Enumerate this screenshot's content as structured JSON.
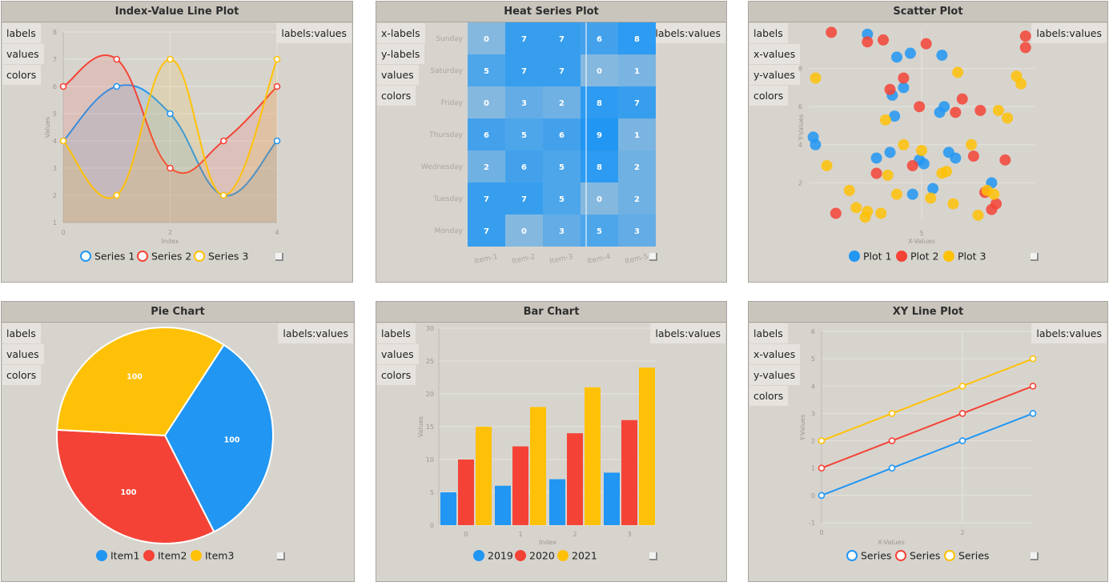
{
  "colors": {
    "blue": "#2196F3",
    "red": "#F44336",
    "yellow": "#FFC107"
  },
  "resize_icon": "resize-handle-icon",
  "panels": {
    "line": {
      "title": "Index-Value Line Plot",
      "inputs": [
        "labels",
        "values",
        "colors"
      ],
      "output": "labels:values",
      "legend": [
        "Series 1",
        "Series 2",
        "Series 3"
      ],
      "chart_data": {
        "type": "line",
        "xlabel": "Index",
        "ylabel": "Values",
        "x": [
          0,
          1,
          2,
          3,
          4
        ],
        "xticks": [
          "0",
          "2",
          "4"
        ],
        "ylim": [
          1,
          8
        ],
        "yticks": [
          "1",
          "2",
          "3",
          "4",
          "5",
          "6",
          "7",
          "8"
        ],
        "series": [
          {
            "name": "Series 1",
            "values": [
              4,
              6,
              5,
              2,
              4
            ]
          },
          {
            "name": "Series 2",
            "values": [
              6,
              7,
              3,
              4,
              6
            ]
          },
          {
            "name": "Series 3",
            "values": [
              4,
              2,
              7,
              2,
              7
            ]
          }
        ]
      }
    },
    "heat": {
      "title": "Heat Series Plot",
      "inputs": [
        "x-labels",
        "y-labels",
        "values",
        "colors"
      ],
      "output": "labels:values",
      "chart_data": {
        "type": "heatmap",
        "rows": [
          "Sunday",
          "Saturday",
          "Friday",
          "Thursday",
          "Wednesday",
          "Tuesday",
          "Monday"
        ],
        "cols": [
          "Item-1",
          "Item-2",
          "Item-3",
          "Item-4",
          "Item-5"
        ],
        "values": [
          [
            0,
            7,
            7,
            6,
            8
          ],
          [
            5,
            7,
            7,
            0,
            1
          ],
          [
            0,
            3,
            2,
            8,
            7
          ],
          [
            6,
            5,
            6,
            9,
            1
          ],
          [
            2,
            6,
            5,
            8,
            2
          ],
          [
            7,
            7,
            5,
            0,
            2
          ],
          [
            7,
            0,
            3,
            5,
            3
          ]
        ]
      }
    },
    "scatter": {
      "title": "Scatter Plot",
      "inputs": [
        "labels",
        "x-values",
        "y-values",
        "colors"
      ],
      "output": "labels:values",
      "legend": [
        "Plot 1",
        "Plot 2",
        "Plot 3"
      ],
      "chart_data": {
        "type": "scatter",
        "xlabel": "X-Values",
        "ylabel": "Y-Values",
        "xlim": [
          0,
          10
        ],
        "ylim": [
          0,
          10
        ],
        "xticks": [
          "5"
        ],
        "yticks": [
          "2",
          "4",
          "6",
          "8"
        ],
        "series": [
          {
            "name": "Plot 1",
            "x": [
              0.2,
              0.3,
              2.6,
              3.0,
              3.6,
              3.7,
              3.8,
              3.9,
              4.2,
              4.5,
              4.6,
              4.9,
              5.1,
              5.5,
              5.8,
              5.9,
              6.0,
              6.2,
              6.5,
              8.1
            ],
            "y": [
              4.4,
              4.0,
              9.8,
              3.3,
              3.6,
              6.6,
              5.5,
              8.6,
              7.0,
              8.8,
              1.4,
              3.2,
              3.0,
              1.7,
              5.7,
              8.7,
              6.0,
              3.6,
              3.3,
              2.0
            ]
          },
          {
            "name": "Plot 2",
            "x": [
              1.0,
              1.2,
              2.6,
              3.0,
              3.3,
              3.6,
              4.2,
              4.6,
              4.9,
              5.2,
              6.5,
              7.3,
              7.6,
              8.1,
              8.3,
              8.7,
              9.6,
              9.6,
              6.8,
              7.8
            ],
            "y": [
              9.9,
              0.4,
              9.4,
              2.5,
              9.5,
              6.9,
              7.5,
              2.9,
              6.0,
              9.3,
              5.7,
              3.4,
              5.8,
              0.6,
              0.9,
              3.2,
              9.7,
              9.1,
              6.4,
              1.5
            ]
          },
          {
            "name": "Plot 3",
            "x": [
              0.3,
              0.8,
              1.8,
              2.1,
              2.5,
              2.6,
              3.2,
              3.4,
              3.5,
              3.9,
              4.2,
              5.0,
              5.4,
              5.9,
              6.1,
              6.4,
              6.6,
              7.2,
              7.5,
              7.9,
              8.2,
              8.4,
              8.8,
              9.2,
              9.4
            ],
            "y": [
              7.5,
              2.9,
              1.6,
              0.7,
              0.2,
              0.5,
              0.4,
              5.3,
              2.4,
              1.4,
              4.0,
              3.7,
              1.2,
              2.5,
              2.6,
              0.9,
              7.8,
              4.0,
              0.3,
              1.6,
              1.4,
              5.8,
              5.4,
              7.6,
              7.2
            ]
          }
        ]
      }
    },
    "pie": {
      "title": "Pie Chart",
      "inputs": [
        "labels",
        "values",
        "colors"
      ],
      "output": "labels:values",
      "legend": [
        "Item1",
        "Item2",
        "Item3"
      ],
      "chart_data": {
        "type": "pie",
        "categories": [
          "Item1",
          "Item2",
          "Item3"
        ],
        "values": [
          100,
          100,
          100
        ]
      }
    },
    "bar": {
      "title": "Bar Chart",
      "inputs": [
        "labels",
        "values",
        "colors"
      ],
      "output": "labels:values",
      "legend": [
        "2019",
        "2020",
        "2021"
      ],
      "chart_data": {
        "type": "bar",
        "xlabel": "Index",
        "ylabel": "Values",
        "categories": [
          "0",
          "1",
          "2",
          "3"
        ],
        "ylim": [
          0,
          30
        ],
        "yticks": [
          "0",
          "5",
          "10",
          "15",
          "20",
          "25",
          "30"
        ],
        "series": [
          {
            "name": "2019",
            "values": [
              5,
              6,
              7,
              8
            ]
          },
          {
            "name": "2020",
            "values": [
              10,
              12,
              14,
              16
            ]
          },
          {
            "name": "2021",
            "values": [
              15,
              18,
              21,
              24
            ]
          }
        ]
      }
    },
    "xy": {
      "title": "XY Line Plot",
      "inputs": [
        "labels",
        "x-values",
        "y-values",
        "colors"
      ],
      "output": "labels:values",
      "legend": [
        "Series",
        "Series",
        "Series"
      ],
      "chart_data": {
        "type": "line",
        "xlabel": "X-Values",
        "ylabel": "Y-Values",
        "x": [
          0,
          1,
          2,
          3
        ],
        "xticks": [
          "0",
          "2"
        ],
        "ylim": [
          -1,
          6
        ],
        "yticks": [
          "-1",
          "0",
          "1",
          "2",
          "3",
          "4",
          "5",
          "6"
        ],
        "series": [
          {
            "name": "Series",
            "values": [
              0,
              1,
              2,
              3
            ]
          },
          {
            "name": "Series",
            "values": [
              1,
              2,
              3,
              4
            ]
          },
          {
            "name": "Series",
            "values": [
              2,
              3,
              4,
              5
            ]
          }
        ]
      }
    }
  }
}
